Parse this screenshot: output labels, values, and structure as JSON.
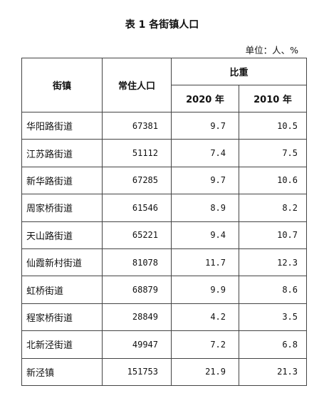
{
  "title": "表 1  各街镇人口",
  "unit": "单位：人、%",
  "headers": {
    "street": "街镇",
    "population": "常住人口",
    "ratio": "比重",
    "y2020": "2020 年",
    "y2010": "2010 年"
  },
  "rows": [
    {
      "name": "华阳路街道",
      "population": "67381",
      "r2020": "9.7",
      "r2010": "10.5"
    },
    {
      "name": "江苏路街道",
      "population": "51112",
      "r2020": "7.4",
      "r2010": "7.5"
    },
    {
      "name": "新华路街道",
      "population": "67285",
      "r2020": "9.7",
      "r2010": "10.6"
    },
    {
      "name": "周家桥街道",
      "population": "61546",
      "r2020": "8.9",
      "r2010": "8.2"
    },
    {
      "name": "天山路街道",
      "population": "65221",
      "r2020": "9.4",
      "r2010": "10.7"
    },
    {
      "name": "仙霞新村街道",
      "population": "81078",
      "r2020": "11.7",
      "r2010": "12.3"
    },
    {
      "name": "虹桥街道",
      "population": "68879",
      "r2020": "9.9",
      "r2010": "8.6"
    },
    {
      "name": "程家桥街道",
      "population": "28849",
      "r2020": "4.2",
      "r2010": "3.5"
    },
    {
      "name": "北新泾街道",
      "population": "49947",
      "r2020": "7.2",
      "r2010": "6.8"
    },
    {
      "name": "新泾镇",
      "population": "151753",
      "r2020": "21.9",
      "r2010": "21.3"
    }
  ]
}
